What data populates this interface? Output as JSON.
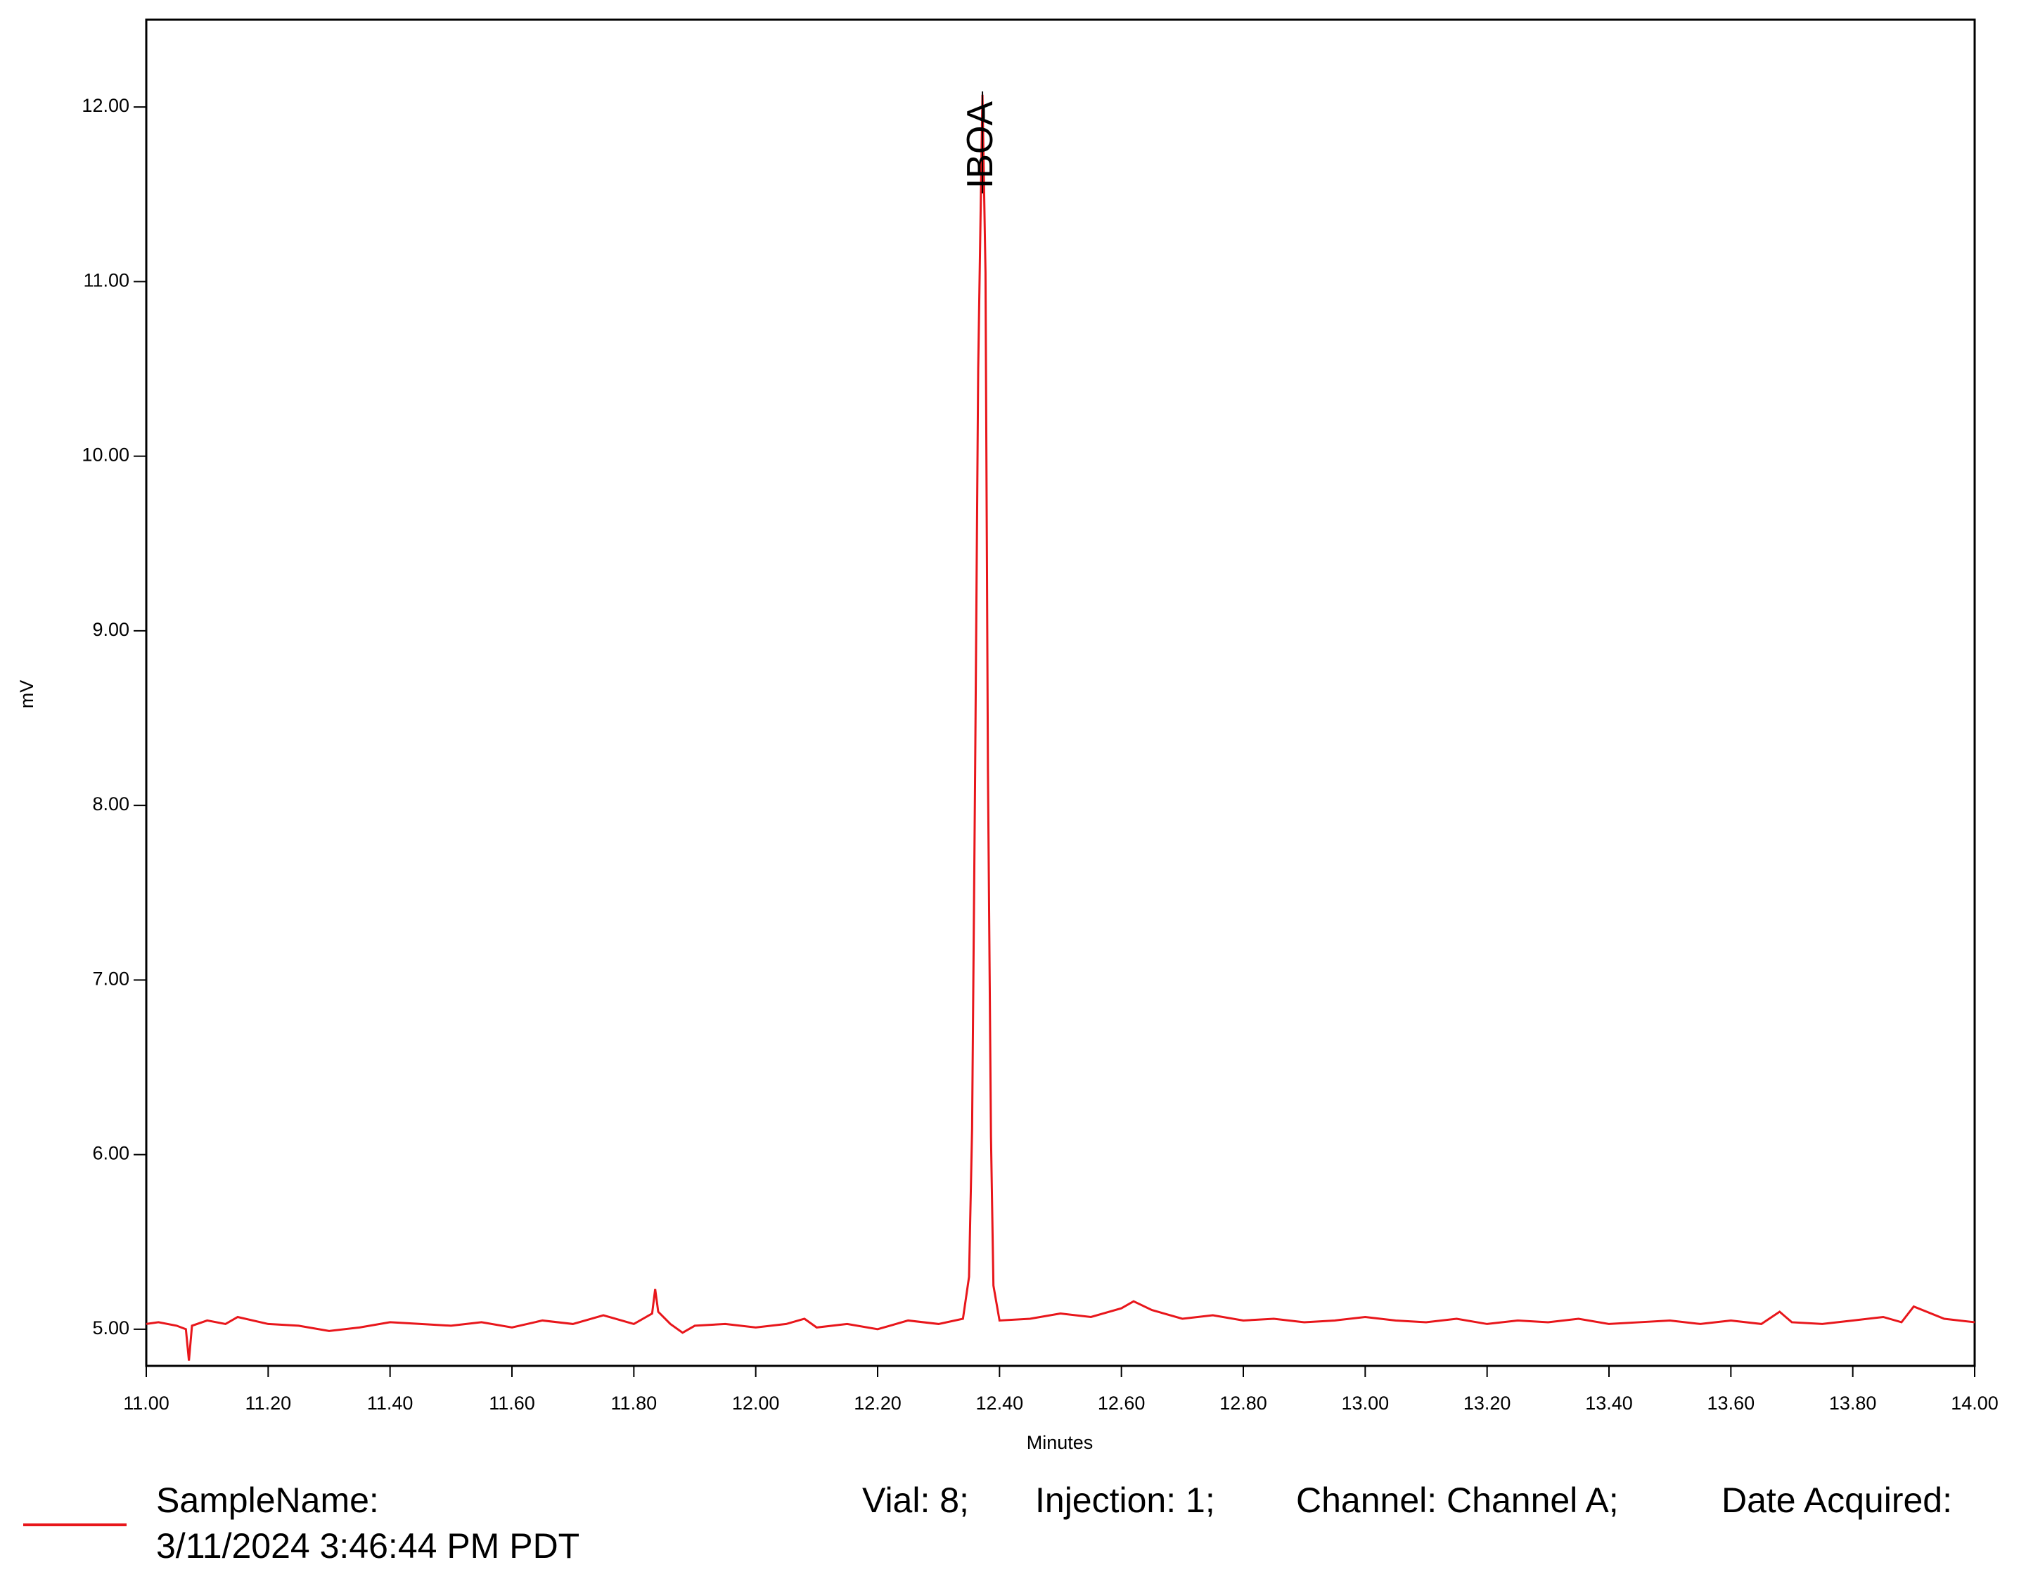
{
  "chart_data": {
    "type": "line",
    "xlabel": "Minutes",
    "ylabel": "mV",
    "xlim": [
      11,
      14
    ],
    "ylim": [
      4.79,
      12.5
    ],
    "xticks": [
      {
        "value": 11,
        "label": "11.00"
      },
      {
        "value": 11.2,
        "label": "11.20"
      },
      {
        "value": 11.4,
        "label": "11.40"
      },
      {
        "value": 11.6,
        "label": "11.60"
      },
      {
        "value": 11.8,
        "label": "11.80"
      },
      {
        "value": 12,
        "label": "12.00"
      },
      {
        "value": 12.2,
        "label": "12.20"
      },
      {
        "value": 12.4,
        "label": "12.40"
      },
      {
        "value": 12.6,
        "label": "12.60"
      },
      {
        "value": 12.8,
        "label": "12.80"
      },
      {
        "value": 13,
        "label": "13.00"
      },
      {
        "value": 13.2,
        "label": "13.20"
      },
      {
        "value": 13.4,
        "label": "13.40"
      },
      {
        "value": 13.6,
        "label": "13.60"
      },
      {
        "value": 13.8,
        "label": "13.80"
      },
      {
        "value": 14,
        "label": "14.00"
      }
    ],
    "yticks": [
      {
        "value": 5,
        "label": "5.00"
      },
      {
        "value": 6,
        "label": "6.00"
      },
      {
        "value": 7,
        "label": "7.00"
      },
      {
        "value": 8,
        "label": "8.00"
      },
      {
        "value": 9,
        "label": "9.00"
      },
      {
        "value": 10,
        "label": "10.00"
      },
      {
        "value": 11,
        "label": "11.00"
      },
      {
        "value": 12,
        "label": "12.00"
      }
    ],
    "x": [
      11,
      11.02,
      11.05,
      11.065,
      11.07,
      11.075,
      11.1,
      11.13,
      11.15,
      11.2,
      11.25,
      11.3,
      11.35,
      11.4,
      11.45,
      11.5,
      11.55,
      11.6,
      11.65,
      11.7,
      11.75,
      11.8,
      11.83,
      11.835,
      11.84,
      11.86,
      11.88,
      11.9,
      11.95,
      12,
      12.05,
      12.08,
      12.1,
      12.15,
      12.2,
      12.25,
      12.3,
      12.34,
      12.35,
      12.355,
      12.36,
      12.365,
      12.372,
      12.377,
      12.381,
      12.386,
      12.39,
      12.4,
      12.45,
      12.5,
      12.55,
      12.6,
      12.62,
      12.65,
      12.7,
      12.75,
      12.8,
      12.85,
      12.9,
      12.95,
      13,
      13.05,
      13.1,
      13.15,
      13.2,
      13.25,
      13.3,
      13.35,
      13.4,
      13.45,
      13.5,
      13.55,
      13.6,
      13.65,
      13.68,
      13.7,
      13.75,
      13.8,
      13.85,
      13.88,
      13.9,
      13.95,
      14
    ],
    "series": [
      {
        "color": "#e8161b",
        "values": [
          5.03,
          5.04,
          5.02,
          5.0,
          4.82,
          5.02,
          5.05,
          5.03,
          5.07,
          5.03,
          5.02,
          4.99,
          5.01,
          5.04,
          5.03,
          5.02,
          5.04,
          5.01,
          5.05,
          5.03,
          5.08,
          5.03,
          5.09,
          5.23,
          5.1,
          5.03,
          4.98,
          5.02,
          5.03,
          5.01,
          5.03,
          5.06,
          5.01,
          5.03,
          5.0,
          5.05,
          5.03,
          5.06,
          5.3,
          6.15,
          8.2,
          10.5,
          12.07,
          11.05,
          8.2,
          6.1,
          5.25,
          5.05,
          5.06,
          5.09,
          5.07,
          5.12,
          5.16,
          5.11,
          5.06,
          5.08,
          5.05,
          5.06,
          5.04,
          5.05,
          5.07,
          5.05,
          5.04,
          5.06,
          5.03,
          5.05,
          5.04,
          5.06,
          5.03,
          5.04,
          5.05,
          5.03,
          5.05,
          5.03,
          5.1,
          5.04,
          5.03,
          5.05,
          5.07,
          5.04,
          5.13,
          5.06,
          5.04
        ]
      }
    ],
    "annotation": {
      "text": "IBOA",
      "x": 12.372
    },
    "legend_text": [
      "SampleName:",
      "Vial: 8;",
      "Injection: 1;",
      "Channel: Channel A;",
      "Date Acquired:",
      "3/11/2024 3:46:44 PM PDT"
    ]
  }
}
